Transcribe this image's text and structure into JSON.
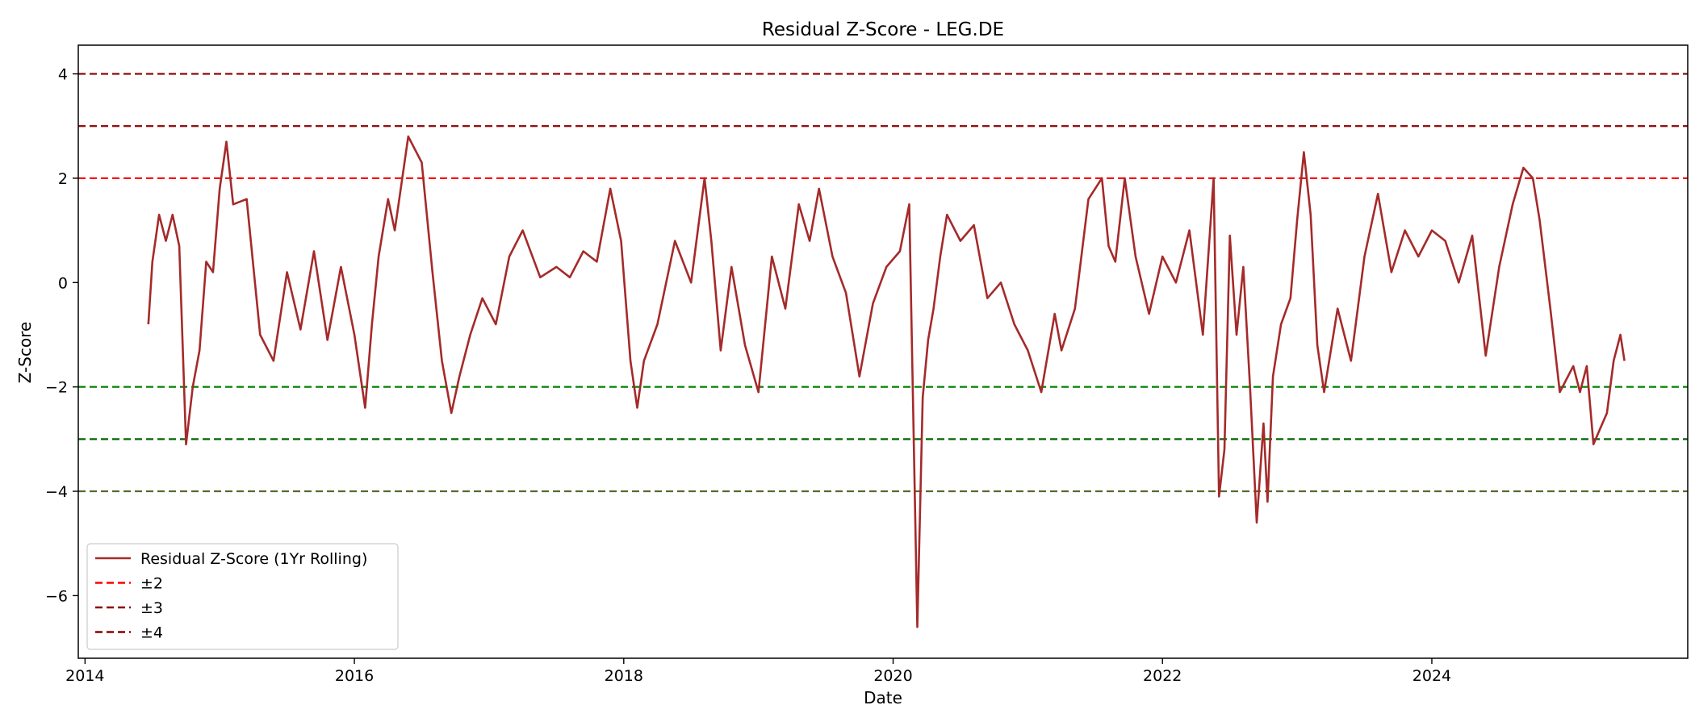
{
  "chart_data": {
    "type": "line",
    "title": "Residual Z-Score - LEG.DE",
    "xlabel": "Date",
    "ylabel": "Z-Score",
    "xlim": [
      2013.95,
      2025.9
    ],
    "ylim": [
      -7.2,
      4.55
    ],
    "x_ticks": [
      2014,
      2016,
      2018,
      2020,
      2022,
      2024
    ],
    "x_tick_labels": [
      "2014",
      "2016",
      "2018",
      "2020",
      "2022",
      "2024"
    ],
    "y_ticks": [
      4,
      2,
      0,
      -2,
      -4,
      -6
    ],
    "y_tick_labels": [
      "4",
      "2",
      "0",
      "−2",
      "−4",
      "−6"
    ],
    "grid": false,
    "legend_position": "lower-left",
    "colors": {
      "series": "#a52a2a",
      "band2_upper": "#ff0000",
      "band2_lower": "#008000",
      "band3_upper": "#8b0000",
      "band3_lower": "#006400",
      "band4_upper": "#8b0000",
      "band4_lower": "#556b2f"
    },
    "reference_lines": [
      {
        "y": 4,
        "color": "#8b0000"
      },
      {
        "y": 3,
        "color": "#8b0000"
      },
      {
        "y": 2,
        "color": "#ff0000"
      },
      {
        "y": -2,
        "color": "#008000"
      },
      {
        "y": -3,
        "color": "#006400"
      },
      {
        "y": -4,
        "color": "#556b2f"
      }
    ],
    "legend": [
      {
        "label": "Residual Z-Score (1Yr Rolling)",
        "style": "solid",
        "color": "#a52a2a"
      },
      {
        "label": "±2",
        "style": "dashed",
        "color": "#ff0000"
      },
      {
        "label": "±3",
        "style": "dashed",
        "color": "#8b0000"
      },
      {
        "label": "±4",
        "style": "dashed",
        "color": "#8b0000"
      }
    ],
    "series": [
      {
        "x": [
          2014.47,
          2014.5,
          2014.55,
          2014.6,
          2014.65,
          2014.7,
          2014.75,
          2014.8,
          2014.85,
          2014.9,
          2014.95,
          2015.0,
          2015.05,
          2015.1,
          2015.2,
          2015.3,
          2015.4,
          2015.5,
          2015.6,
          2015.7,
          2015.8,
          2015.9,
          2016.0,
          2016.08,
          2016.13,
          2016.18,
          2016.25,
          2016.3,
          2016.4,
          2016.5,
          2016.58,
          2016.65,
          2016.72,
          2016.78,
          2016.86,
          2016.95,
          2017.05,
          2017.15,
          2017.25,
          2017.38,
          2017.5,
          2017.6,
          2017.7,
          2017.8,
          2017.9,
          2017.98,
          2018.05,
          2018.1,
          2018.15,
          2018.25,
          2018.38,
          2018.5,
          2018.6,
          2018.65,
          2018.72,
          2018.8,
          2018.9,
          2019.0,
          2019.1,
          2019.2,
          2019.3,
          2019.38,
          2019.45,
          2019.55,
          2019.65,
          2019.75,
          2019.85,
          2019.95,
          2020.05,
          2020.12,
          2020.18,
          2020.22,
          2020.26,
          2020.3,
          2020.35,
          2020.4,
          2020.5,
          2020.6,
          2020.7,
          2020.8,
          2020.9,
          2021.0,
          2021.1,
          2021.2,
          2021.25,
          2021.35,
          2021.45,
          2021.55,
          2021.6,
          2021.65,
          2021.72,
          2021.8,
          2021.9,
          2022.0,
          2022.1,
          2022.2,
          2022.3,
          2022.38,
          2022.42,
          2022.46,
          2022.5,
          2022.55,
          2022.6,
          2022.65,
          2022.7,
          2022.75,
          2022.78,
          2022.82,
          2022.88,
          2022.95,
          2023.0,
          2023.05,
          2023.1,
          2023.15,
          2023.2,
          2023.3,
          2023.4,
          2023.5,
          2023.6,
          2023.7,
          2023.8,
          2023.9,
          2024.0,
          2024.1,
          2024.2,
          2024.3,
          2024.4,
          2024.5,
          2024.6,
          2024.68,
          2024.75,
          2024.8,
          2024.88,
          2024.95,
          2025.05,
          2025.1,
          2025.15,
          2025.2,
          2025.25,
          2025.3,
          2025.35,
          2025.4,
          2025.43
        ],
        "values": [
          -0.8,
          0.4,
          1.3,
          0.8,
          1.3,
          0.7,
          -3.1,
          -2.0,
          -1.3,
          0.4,
          0.2,
          1.8,
          2.7,
          1.5,
          1.6,
          -1.0,
          -1.5,
          0.2,
          -0.9,
          0.6,
          -1.1,
          0.3,
          -1.0,
          -2.4,
          -0.8,
          0.5,
          1.6,
          1.0,
          2.8,
          2.3,
          0.2,
          -1.5,
          -2.5,
          -1.8,
          -1.0,
          -0.3,
          -0.8,
          0.5,
          1.0,
          0.1,
          0.3,
          0.1,
          0.6,
          0.4,
          1.8,
          0.8,
          -1.5,
          -2.4,
          -1.5,
          -0.8,
          0.8,
          0.0,
          2.0,
          0.8,
          -1.3,
          0.3,
          -1.2,
          -2.1,
          0.5,
          -0.5,
          1.5,
          0.8,
          1.8,
          0.5,
          -0.2,
          -1.8,
          -0.4,
          0.3,
          0.6,
          1.5,
          -6.6,
          -2.2,
          -1.1,
          -0.5,
          0.5,
          1.3,
          0.8,
          1.1,
          -0.3,
          0.0,
          -0.8,
          -1.3,
          -2.1,
          -0.6,
          -1.3,
          -0.5,
          1.6,
          2.0,
          0.7,
          0.4,
          2.0,
          0.5,
          -0.6,
          0.5,
          0.0,
          1.0,
          -1.0,
          2.0,
          -4.1,
          -3.2,
          0.9,
          -1.0,
          0.3,
          -2.0,
          -4.6,
          -2.7,
          -4.2,
          -1.8,
          -0.8,
          -0.3,
          1.2,
          2.5,
          1.3,
          -1.2,
          -2.1,
          -0.5,
          -1.5,
          0.5,
          1.7,
          0.2,
          1.0,
          0.5,
          1.0,
          0.8,
          0.0,
          0.9,
          -1.4,
          0.3,
          1.5,
          2.2,
          2.0,
          1.2,
          -0.5,
          -2.1,
          -1.6,
          -2.1,
          -1.6,
          -3.1,
          -2.8,
          -2.5,
          -1.5,
          -1.0,
          -1.5
        ]
      }
    ]
  }
}
